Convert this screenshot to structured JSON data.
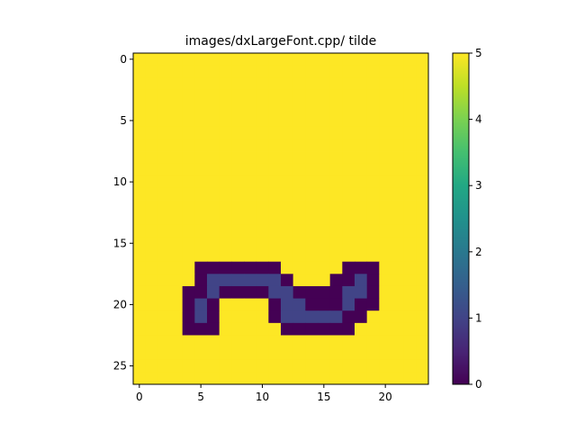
{
  "chart_data": {
    "type": "heatmap",
    "title": "images/dxLargeFont.cpp/ tilde",
    "xlabel": "",
    "ylabel": "",
    "rows": 27,
    "cols": 24,
    "xlim": [
      -0.5,
      23.5
    ],
    "ylim": [
      26.5,
      -0.5
    ],
    "xticks": [
      0,
      5,
      10,
      15,
      20
    ],
    "yticks": [
      0,
      5,
      10,
      15,
      20,
      25
    ],
    "colorbar": {
      "min": 0,
      "max": 5,
      "ticks": [
        0,
        1,
        2,
        3,
        4,
        5
      ],
      "colormap": "viridis"
    },
    "background_value": 5,
    "cells": [
      {
        "row": 17,
        "values": {
          "5": 0,
          "6": 0,
          "7": 0,
          "8": 0,
          "9": 0,
          "10": 0,
          "11": 0,
          "17": 0,
          "18": 0,
          "19": 0
        }
      },
      {
        "row": 18,
        "values": {
          "5": 0,
          "6": 1,
          "7": 1,
          "8": 1,
          "9": 1,
          "10": 1,
          "11": 1,
          "12": 0,
          "16": 0,
          "17": 0,
          "18": 1,
          "19": 0
        }
      },
      {
        "row": 19,
        "values": {
          "4": 0,
          "5": 0,
          "6": 1,
          "7": 0,
          "8": 0,
          "9": 0,
          "10": 0,
          "11": 1,
          "12": 1,
          "13": 0,
          "14": 0,
          "15": 0,
          "16": 0,
          "17": 1,
          "18": 1,
          "19": 0
        }
      },
      {
        "row": 20,
        "values": {
          "4": 0,
          "5": 1,
          "6": 0,
          "11": 0,
          "12": 1,
          "13": 1,
          "14": 0,
          "15": 0,
          "16": 0,
          "17": 1,
          "18": 0,
          "19": 0
        }
      },
      {
        "row": 21,
        "values": {
          "4": 0,
          "5": 1,
          "6": 0,
          "11": 0,
          "12": 1,
          "13": 1,
          "14": 1,
          "15": 1,
          "16": 1,
          "17": 0,
          "18": 0
        }
      },
      {
        "row": 22,
        "values": {
          "4": 0,
          "5": 0,
          "6": 0,
          "12": 0,
          "13": 0,
          "14": 0,
          "15": 0,
          "16": 0,
          "17": 0
        }
      }
    ]
  }
}
